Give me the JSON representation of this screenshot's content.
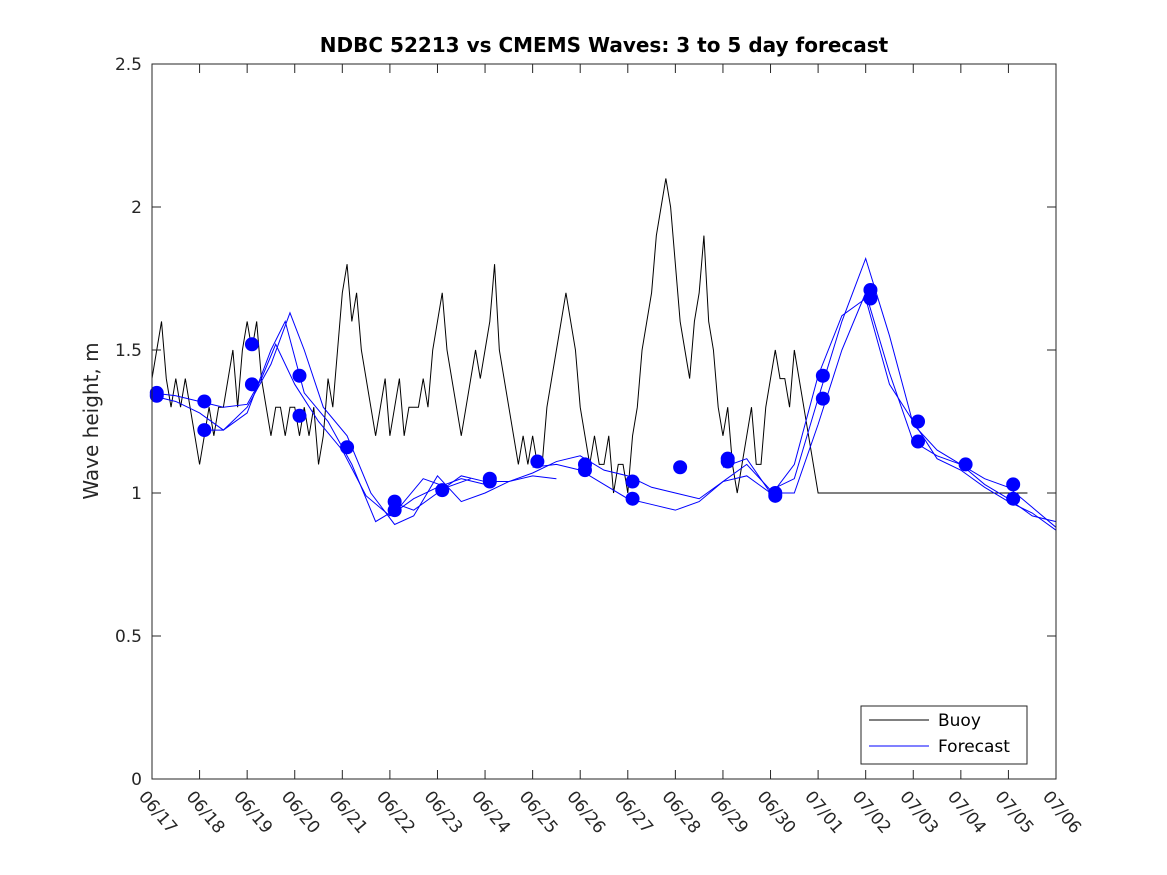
{
  "chart_data": {
    "type": "line",
    "title": "NDBC 52213 vs CMEMS Waves: 3 to 5 day forecast",
    "ylabel": "Wave height, m",
    "xlabel": "",
    "ylim": [
      0,
      2.5
    ],
    "yticks": [
      0,
      0.5,
      1,
      1.5,
      2,
      2.5
    ],
    "ytick_labels": [
      "0",
      "0.5",
      "1",
      "1.5",
      "2",
      "2.5"
    ],
    "xlim_days": [
      0,
      19
    ],
    "xtick_labels": [
      "06/17",
      "06/18",
      "06/19",
      "06/20",
      "06/21",
      "06/22",
      "06/23",
      "06/24",
      "06/25",
      "06/26",
      "06/27",
      "06/28",
      "06/29",
      "06/30",
      "07/01",
      "07/02",
      "07/03",
      "07/04",
      "07/05",
      "07/06"
    ],
    "grid": false,
    "legend_position": "bottom-right",
    "colors": {
      "buoy": "#000000",
      "forecast": "#0000ff",
      "axis": "#262626"
    },
    "series": [
      {
        "name": "Buoy",
        "style": "line",
        "x": [
          0,
          0.1,
          0.2,
          0.3,
          0.4,
          0.5,
          0.6,
          0.7,
          0.8,
          0.9,
          1.0,
          1.1,
          1.2,
          1.3,
          1.4,
          1.5,
          1.6,
          1.7,
          1.8,
          1.9,
          2.0,
          2.1,
          2.2,
          2.3,
          2.4,
          2.5,
          2.6,
          2.7,
          2.8,
          2.9,
          3.0,
          3.1,
          3.2,
          3.3,
          3.4,
          3.5,
          3.6,
          3.7,
          3.8,
          3.9,
          4.0,
          4.1,
          4.2,
          4.3,
          4.4,
          4.5,
          4.6,
          4.7,
          4.8,
          4.9,
          5.0,
          5.1,
          5.2,
          5.3,
          5.4,
          5.5,
          5.6,
          5.7,
          5.8,
          5.9,
          6.0,
          6.1,
          6.2,
          6.3,
          6.4,
          6.5,
          6.6,
          6.7,
          6.8,
          6.9,
          7.0,
          7.1,
          7.2,
          7.3,
          7.4,
          7.5,
          7.6,
          7.7,
          7.8,
          7.9,
          8.0,
          8.1,
          8.2,
          8.3,
          8.4,
          8.5,
          8.6,
          8.7,
          8.8,
          8.9,
          9.0,
          9.1,
          9.2,
          9.3,
          9.4,
          9.5,
          9.6,
          9.7,
          9.8,
          9.9,
          10.0,
          10.1,
          10.2,
          10.3,
          10.4,
          10.5,
          10.6,
          10.7,
          10.8,
          10.9,
          11.0,
          11.1,
          11.2,
          11.3,
          11.4,
          11.5,
          11.6,
          11.7,
          11.8,
          11.9,
          12.0,
          12.1,
          12.2,
          12.3,
          12.4,
          12.5,
          12.6,
          12.7,
          12.8,
          12.9,
          13.0,
          13.1,
          13.2,
          13.3,
          13.4,
          13.5,
          13.6,
          13.7,
          13.8,
          13.9,
          14.0,
          14.1,
          14.2,
          14.3,
          14.4,
          14.5,
          14.6,
          14.7,
          14.8,
          14.9,
          15.0,
          15.1,
          15.2,
          15.3,
          15.4,
          15.5,
          15.6,
          15.7,
          15.8,
          15.9,
          16.0,
          16.1,
          16.2,
          16.3,
          16.4,
          16.5,
          16.6,
          16.7,
          16.8,
          16.9,
          17.0,
          17.1,
          17.2,
          17.3,
          17.4,
          17.5,
          17.6,
          17.7,
          17.8,
          17.9,
          18.0,
          18.1,
          18.2,
          18.3,
          18.4
        ],
        "y": [
          1.4,
          1.5,
          1.6,
          1.4,
          1.3,
          1.4,
          1.3,
          1.4,
          1.3,
          1.2,
          1.1,
          1.2,
          1.3,
          1.2,
          1.3,
          1.3,
          1.4,
          1.5,
          1.3,
          1.5,
          1.6,
          1.5,
          1.6,
          1.4,
          1.3,
          1.2,
          1.3,
          1.3,
          1.2,
          1.3,
          1.3,
          1.2,
          1.3,
          1.2,
          1.3,
          1.1,
          1.2,
          1.4,
          1.3,
          1.5,
          1.7,
          1.8,
          1.6,
          1.7,
          1.5,
          1.4,
          1.3,
          1.2,
          1.3,
          1.4,
          1.2,
          1.3,
          1.4,
          1.2,
          1.3,
          1.3,
          1.3,
          1.4,
          1.3,
          1.5,
          1.6,
          1.7,
          1.5,
          1.4,
          1.3,
          1.2,
          1.3,
          1.4,
          1.5,
          1.4,
          1.5,
          1.6,
          1.8,
          1.5,
          1.4,
          1.3,
          1.2,
          1.1,
          1.2,
          1.1,
          1.2,
          1.1,
          1.1,
          1.3,
          1.4,
          1.5,
          1.6,
          1.7,
          1.6,
          1.5,
          1.3,
          1.2,
          1.1,
          1.2,
          1.1,
          1.1,
          1.2,
          1.0,
          1.1,
          1.1,
          1.0,
          1.2,
          1.3,
          1.5,
          1.6,
          1.7,
          1.9,
          2.0,
          2.1,
          2.0,
          1.8,
          1.6,
          1.5,
          1.4,
          1.6,
          1.7,
          1.9,
          1.6,
          1.5,
          1.3,
          1.2,
          1.3,
          1.1,
          1.0,
          1.1,
          1.2,
          1.3,
          1.1,
          1.1,
          1.3,
          1.4,
          1.5,
          1.4,
          1.4,
          1.3,
          1.5,
          1.4,
          1.3,
          1.2,
          1.1,
          1.0,
          1.0,
          1.0,
          1.0,
          1.0,
          1.0,
          1.0,
          1.0,
          1.0,
          1.0,
          1.0,
          1.0,
          1.0,
          1.0,
          1.0,
          1.0,
          1.0,
          1.0,
          1.0,
          1.0,
          1.0,
          1.0,
          1.0,
          1.0,
          1.0,
          1.0,
          1.0,
          1.0,
          1.0,
          1.0,
          1.0,
          1.0,
          1.0,
          1.0,
          1.0,
          1.0,
          1.0,
          1.0,
          1.0,
          1.0,
          1.0,
          1.0,
          1.0,
          1.0,
          1.0
        ]
      },
      {
        "name": "Forecast",
        "style": "line",
        "runs": [
          {
            "x": [
              0,
              0.5,
              1,
              1.5,
              2,
              2.3,
              2.6,
              3,
              3.5,
              4,
              4.5,
              5,
              5.5,
              6,
              6.5,
              7
            ],
            "y": [
              1.35,
              1.34,
              1.32,
              1.3,
              1.31,
              1.4,
              1.52,
              1.38,
              1.25,
              1.15,
              0.99,
              0.92,
              0.98,
              1.02,
              1.05,
              1.03
            ]
          },
          {
            "x": [
              0,
              0.5,
              1,
              1.5,
              2,
              2.5,
              2.8,
              3.2,
              3.7,
              4.2,
              4.7,
              5.2,
              5.7,
              6.2,
              6.7
            ],
            "y": [
              1.34,
              1.32,
              1.28,
              1.22,
              1.28,
              1.5,
              1.6,
              1.35,
              1.25,
              1.1,
              0.9,
              0.95,
              1.05,
              1.02,
              1.05
            ]
          },
          {
            "x": [
              1,
              1.5,
              2,
              2.5,
              2.9,
              3.2,
              3.6,
              4.1,
              4.6,
              5.1,
              5.5,
              6,
              6.5,
              7,
              7.5,
              8,
              8.5
            ],
            "y": [
              1.22,
              1.22,
              1.3,
              1.45,
              1.63,
              1.5,
              1.3,
              1.2,
              1.0,
              0.89,
              0.92,
              1.06,
              0.97,
              1.0,
              1.04,
              1.06,
              1.05
            ]
          },
          {
            "x": [
              5,
              5.5,
              6,
              6.5,
              7,
              7.5,
              8,
              8.5,
              9,
              9.5,
              10,
              10.5,
              11,
              11.5,
              12,
              12.5,
              13
            ],
            "y": [
              0.97,
              0.94,
              1.0,
              1.06,
              1.04,
              1.04,
              1.07,
              1.11,
              1.13,
              1.08,
              1.06,
              1.02,
              1.0,
              0.98,
              1.04,
              1.06,
              1.0
            ]
          },
          {
            "x": [
              8,
              8.5,
              9,
              9.5,
              10,
              10.5,
              11,
              11.5,
              12,
              12.5,
              13,
              13.5,
              14,
              14.5,
              15,
              15.5,
              16,
              16.5,
              17,
              17.5,
              18,
              18.5,
              19
            ],
            "y": [
              1.09,
              1.1,
              1.08,
              1.03,
              0.98,
              0.96,
              0.94,
              0.97,
              1.04,
              1.1,
              1.01,
              1.05,
              1.33,
              1.6,
              1.82,
              1.55,
              1.24,
              1.15,
              1.1,
              1.03,
              0.98,
              0.92,
              0.9
            ]
          },
          {
            "x": [
              12,
              12.5,
              13,
              13.5,
              14,
              14.5,
              15,
              15.5,
              16,
              16.5,
              17,
              17.5,
              18,
              18.5,
              19
            ],
            "y": [
              1.09,
              1.12,
              1.0,
              1.0,
              1.24,
              1.5,
              1.7,
              1.42,
              1.18,
              1.13,
              1.1,
              1.05,
              1.02,
              0.95,
              0.88
            ]
          },
          {
            "x": [
              13,
              13.5,
              14,
              14.5,
              15,
              15.5,
              16,
              16.5,
              17,
              17.5,
              18,
              18.5,
              19
            ],
            "y": [
              0.99,
              1.1,
              1.41,
              1.62,
              1.68,
              1.38,
              1.25,
              1.12,
              1.08,
              1.02,
              0.97,
              0.93,
              0.87
            ]
          }
        ]
      }
    ],
    "forecast_markers": {
      "x": [
        0.1,
        0.1,
        1.1,
        1.1,
        2.1,
        2.1,
        3.1,
        3.1,
        4.1,
        5.1,
        5.1,
        6.1,
        7.1,
        7.1,
        8.1,
        9.1,
        9.1,
        10.1,
        10.1,
        11.1,
        12.1,
        12.1,
        13.1,
        13.1,
        14.1,
        14.1,
        15.1,
        15.1,
        16.1,
        16.1,
        17.1,
        18.1,
        18.1
      ],
      "y": [
        1.34,
        1.35,
        1.32,
        1.22,
        1.52,
        1.38,
        1.41,
        1.27,
        1.16,
        0.97,
        0.94,
        1.01,
        1.05,
        1.04,
        1.11,
        1.1,
        1.08,
        1.04,
        0.98,
        1.09,
        1.12,
        1.11,
        1.0,
        0.99,
        1.41,
        1.33,
        1.71,
        1.68,
        1.25,
        1.18,
        1.1,
        1.03,
        0.98
      ]
    }
  }
}
